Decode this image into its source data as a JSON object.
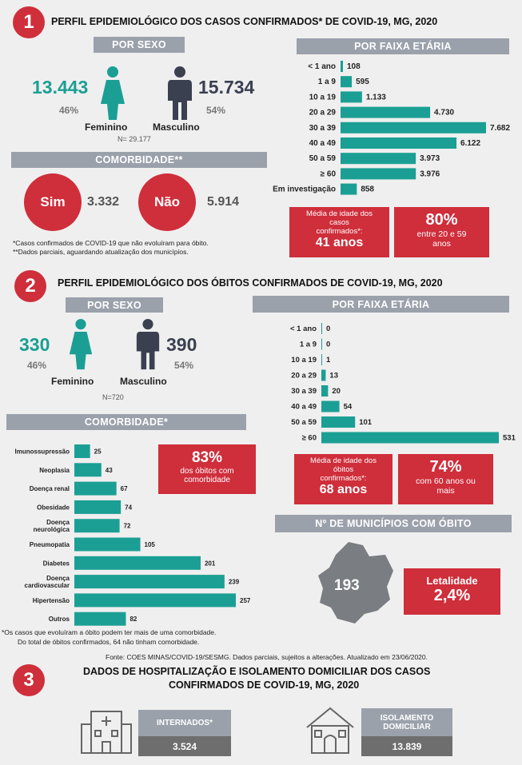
{
  "s1": {
    "num": "1",
    "title": "PERFIL EPIDEMIOLÓGICO DOS CASOS CONFIRMADOS* DE COVID-19, MG, 2020",
    "sex_head": "POR SEXO",
    "fem_val": "13.443",
    "fem_pct": "46%",
    "masc_val": "15.734",
    "masc_pct": "54%",
    "fem_lbl": "Feminino",
    "masc_lbl": "Masculino",
    "n": "N= 29.177",
    "com_head": "COMORBIDADE**",
    "sim": "Sim",
    "sim_val": "3.332",
    "nao": "Não",
    "nao_val": "5.914",
    "note1": "*Casos confirmados de COVID-19 que não evoluíram para óbito.",
    "note2": "**Dados parciais, aguardando atualização dos municípios.",
    "age_head": "POR FAIXA ETÁRIA",
    "mean_l1": "Média de idade dos",
    "mean_l2": "casos",
    "mean_l3": "confirmados*:",
    "mean_val": "41 anos",
    "pct_val": "80%",
    "pct_l1": "entre 20 e 59",
    "pct_l2": "anos"
  },
  "s2": {
    "num": "2",
    "title": "PERFIL EPIDEMIOLÓGICO DOS ÓBITOS CONFIRMADOS DE COVID-19, MG, 2020",
    "sex_head": "POR SEXO",
    "fem_val": "330",
    "fem_pct": "46%",
    "masc_val": "390",
    "masc_pct": "54%",
    "fem_lbl": "Feminino",
    "masc_lbl": "Masculino",
    "n": "N=720",
    "com_head": "COMORBIDADE*",
    "com_pct": "83%",
    "com_l1": "dos óbitos com",
    "com_l2": "comorbidade",
    "age_head": "POR FAIXA ETÁRIA",
    "mean_l1": "Média de idade dos",
    "mean_l2": "óbitos",
    "mean_l3": "confirmados*:",
    "mean_val": "68 anos",
    "pct_val": "74%",
    "pct_l1": "com 60 anos ou",
    "pct_l2": "mais",
    "mun_head": "Nº DE MUNICÍPIOS COM ÓBITO",
    "mun_val": "193",
    "let_lbl": "Letalidade",
    "let_val": "2,4%",
    "note1": "*Os casos que evoluíram a óbito podem ter mais de uma comorbidade.",
    "note2": "Do total de óbitos confirmados, 64 não tinham comorbidade."
  },
  "source": "Fonte: COES MINAS/COVID-19/SESMG. Dados parciais, sujeitos a alterações. Atualizado em 23/06/2020.",
  "s3": {
    "num": "3",
    "title1": "DADOS DE HOSPITALIZAÇÃO E ISOLAMENTO DOMICILIAR DOS CASOS",
    "title2": "CONFIRMADOS DE COVID-19, MG, 2020",
    "int_lbl": "INTERNADOS*",
    "int_val": "3.524",
    "iso_l1": "ISOLAMENTO",
    "iso_l2": "DOMICILIAR",
    "iso_val": "13.839"
  },
  "colors": {
    "teal": "#1b9f94",
    "red": "#cf2e3b",
    "gray": "#9aa1ab",
    "dark": "#3a4050"
  },
  "chart_data": [
    {
      "type": "bar",
      "orientation": "horizontal",
      "categories": [
        "< 1 ano",
        "1 a 9",
        "10 a 19",
        "20 a 29",
        "30 a 39",
        "40 a 49",
        "50 a 59",
        "≥ 60",
        "Em investigação"
      ],
      "values": [
        108,
        595,
        1133,
        4730,
        7682,
        6122,
        3973,
        3976,
        858
      ],
      "labels": [
        "108",
        "595",
        "1.133",
        "4.730",
        "7.682",
        "6.122",
        "3.973",
        "3.976",
        "858"
      ]
    },
    {
      "type": "bar",
      "orientation": "horizontal",
      "categories": [
        "< 1 ano",
        "1 a 9",
        "10 a 19",
        "20 a 29",
        "30 a 39",
        "40 a 49",
        "50 a 59",
        "≥ 60"
      ],
      "values": [
        0,
        0,
        1,
        13,
        20,
        54,
        101,
        531
      ],
      "labels": [
        "0",
        "0",
        "1",
        "13",
        "20",
        "54",
        "101",
        "531"
      ]
    },
    {
      "type": "bar",
      "orientation": "horizontal",
      "categories": [
        "Imunossupressão",
        "Neoplasia",
        "Doença renal",
        "Obesidade",
        "Doença neurológica",
        "Pneumopatia",
        "Diabetes",
        "Doença cardiovascular",
        "Hipertensão",
        "Outros"
      ],
      "values": [
        25,
        43,
        67,
        74,
        72,
        105,
        201,
        239,
        257,
        82
      ],
      "labels": [
        "25",
        "43",
        "67",
        "74",
        "72",
        "105",
        "201",
        "239",
        "257",
        "82"
      ]
    }
  ]
}
